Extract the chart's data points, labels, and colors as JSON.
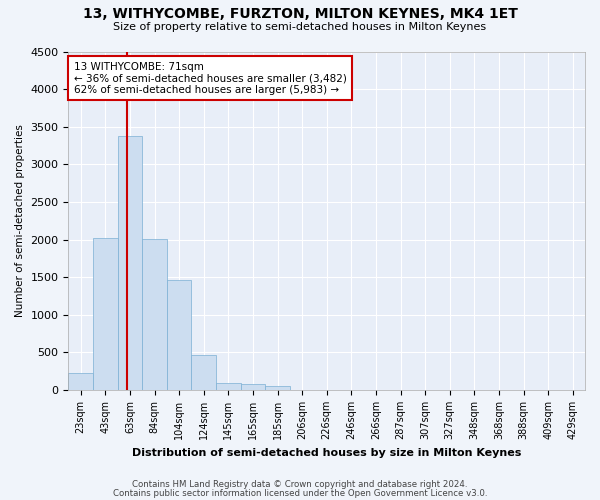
{
  "title": "13, WITHYCOMBE, FURZTON, MILTON KEYNES, MK4 1ET",
  "subtitle": "Size of property relative to semi-detached houses in Milton Keynes",
  "xlabel": "Distribution of semi-detached houses by size in Milton Keynes",
  "ylabel": "Number of semi-detached properties",
  "bin_labels": [
    "23sqm",
    "43sqm",
    "63sqm",
    "84sqm",
    "104sqm",
    "124sqm",
    "145sqm",
    "165sqm",
    "185sqm",
    "206sqm",
    "226sqm",
    "246sqm",
    "266sqm",
    "287sqm",
    "307sqm",
    "327sqm",
    "348sqm",
    "368sqm",
    "388sqm",
    "409sqm",
    "429sqm"
  ],
  "bar_values": [
    230,
    2020,
    3380,
    2010,
    1460,
    460,
    100,
    75,
    60,
    0,
    0,
    0,
    0,
    0,
    0,
    0,
    0,
    0,
    0,
    0,
    0
  ],
  "bar_color": "#ccddf0",
  "bar_edge_color": "#7bafd4",
  "vline_color": "#cc0000",
  "annotation_title": "13 WITHYCOMBE: 71sqm",
  "annotation_line1": "← 36% of semi-detached houses are smaller (3,482)",
  "annotation_line2": "62% of semi-detached houses are larger (5,983) →",
  "annotation_box_color": "#ffffff",
  "annotation_box_edge": "#cc0000",
  "ylim": [
    0,
    4500
  ],
  "yticks": [
    0,
    500,
    1000,
    1500,
    2000,
    2500,
    3000,
    3500,
    4000,
    4500
  ],
  "footer1": "Contains HM Land Registry data © Crown copyright and database right 2024.",
  "footer2": "Contains public sector information licensed under the Open Government Licence v3.0.",
  "bg_color": "#f0f4fa",
  "plot_bg_color": "#e8eef8"
}
